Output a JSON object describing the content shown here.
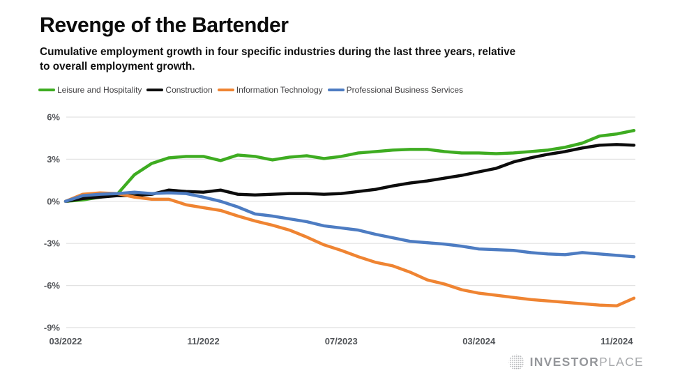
{
  "page": {
    "title": "Revenge of the Bartender",
    "subtitle_line1": "Cumulative employment growth in four specific industries during the last three years, relative",
    "subtitle_line2": "to overall employment growth."
  },
  "branding": {
    "logo_primary": "INVESTOR",
    "logo_secondary": "PLACE",
    "logo_icon": "dotted-globe-icon",
    "logo_color": "#97999d"
  },
  "chart_data": {
    "type": "line",
    "title": "Revenge of the Bartender",
    "subtitle": "Cumulative employment growth in four specific industries during the last three years, relative to overall employment growth.",
    "x_unit": "month",
    "x": [
      "03/2022",
      "04/2022",
      "05/2022",
      "06/2022",
      "07/2022",
      "08/2022",
      "09/2022",
      "10/2022",
      "11/2022",
      "12/2022",
      "01/2023",
      "02/2023",
      "03/2023",
      "04/2023",
      "05/2023",
      "06/2023",
      "07/2023",
      "08/2023",
      "09/2023",
      "10/2023",
      "11/2023",
      "12/2023",
      "01/2024",
      "02/2024",
      "03/2024",
      "04/2024",
      "05/2024",
      "06/2024",
      "07/2024",
      "08/2024",
      "09/2024",
      "10/2024",
      "11/2024",
      "12/2024"
    ],
    "x_axis_ticks": [
      {
        "index": 0,
        "label": "03/2022"
      },
      {
        "index": 8,
        "label": "11/2022"
      },
      {
        "index": 16,
        "label": "07/2023"
      },
      {
        "index": 24,
        "label": "03/2024"
      },
      {
        "index": 32,
        "label": "11/2024"
      }
    ],
    "yticks": [
      6,
      3,
      0,
      -3,
      -6,
      -9
    ],
    "ylim": [
      -9,
      6
    ],
    "y_format": "percent",
    "grid": "horizontal",
    "grid_color": "#e2e2e2",
    "axis_label_color": "#55575b",
    "legend_position": "top",
    "series": [
      {
        "name": "Leisure and Hospitality",
        "color": "#3eac21",
        "values": [
          0,
          0.1,
          0.3,
          0.5,
          1.9,
          2.7,
          3.1,
          3.2,
          3.2,
          2.9,
          3.3,
          3.2,
          2.95,
          3.15,
          3.25,
          3.05,
          3.2,
          3.45,
          3.55,
          3.65,
          3.7,
          3.7,
          3.55,
          3.45,
          3.45,
          3.4,
          3.45,
          3.55,
          3.65,
          3.85,
          4.15,
          4.65,
          4.8,
          5.05
        ]
      },
      {
        "name": "Construction",
        "color": "#0c0c0c",
        "values": [
          0,
          0.2,
          0.3,
          0.4,
          0.4,
          0.5,
          0.8,
          0.7,
          0.65,
          0.8,
          0.5,
          0.45,
          0.5,
          0.55,
          0.55,
          0.5,
          0.55,
          0.7,
          0.85,
          1.1,
          1.3,
          1.45,
          1.65,
          1.85,
          2.1,
          2.35,
          2.8,
          3.1,
          3.35,
          3.55,
          3.8,
          4.0,
          4.05,
          4.0
        ]
      },
      {
        "name": "Information Technology",
        "color": "#ef8432",
        "values": [
          0,
          0.5,
          0.6,
          0.55,
          0.3,
          0.15,
          0.15,
          -0.25,
          -0.45,
          -0.65,
          -1.05,
          -1.4,
          -1.7,
          -2.05,
          -2.55,
          -3.1,
          -3.5,
          -3.95,
          -4.35,
          -4.6,
          -5.05,
          -5.6,
          -5.9,
          -6.3,
          -6.55,
          -6.7,
          -6.85,
          -7.0,
          -7.1,
          -7.2,
          -7.3,
          -7.4,
          -7.45,
          -6.9
        ]
      },
      {
        "name": "Professional Business Services",
        "color": "#4d7cc2",
        "values": [
          0,
          0.4,
          0.5,
          0.55,
          0.65,
          0.55,
          0.6,
          0.55,
          0.3,
          0.0,
          -0.4,
          -0.9,
          -1.05,
          -1.25,
          -1.45,
          -1.75,
          -1.9,
          -2.05,
          -2.35,
          -2.6,
          -2.85,
          -2.95,
          -3.05,
          -3.2,
          -3.4,
          -3.45,
          -3.5,
          -3.65,
          -3.75,
          -3.8,
          -3.65,
          -3.75,
          -3.85,
          -3.95
        ]
      }
    ]
  }
}
